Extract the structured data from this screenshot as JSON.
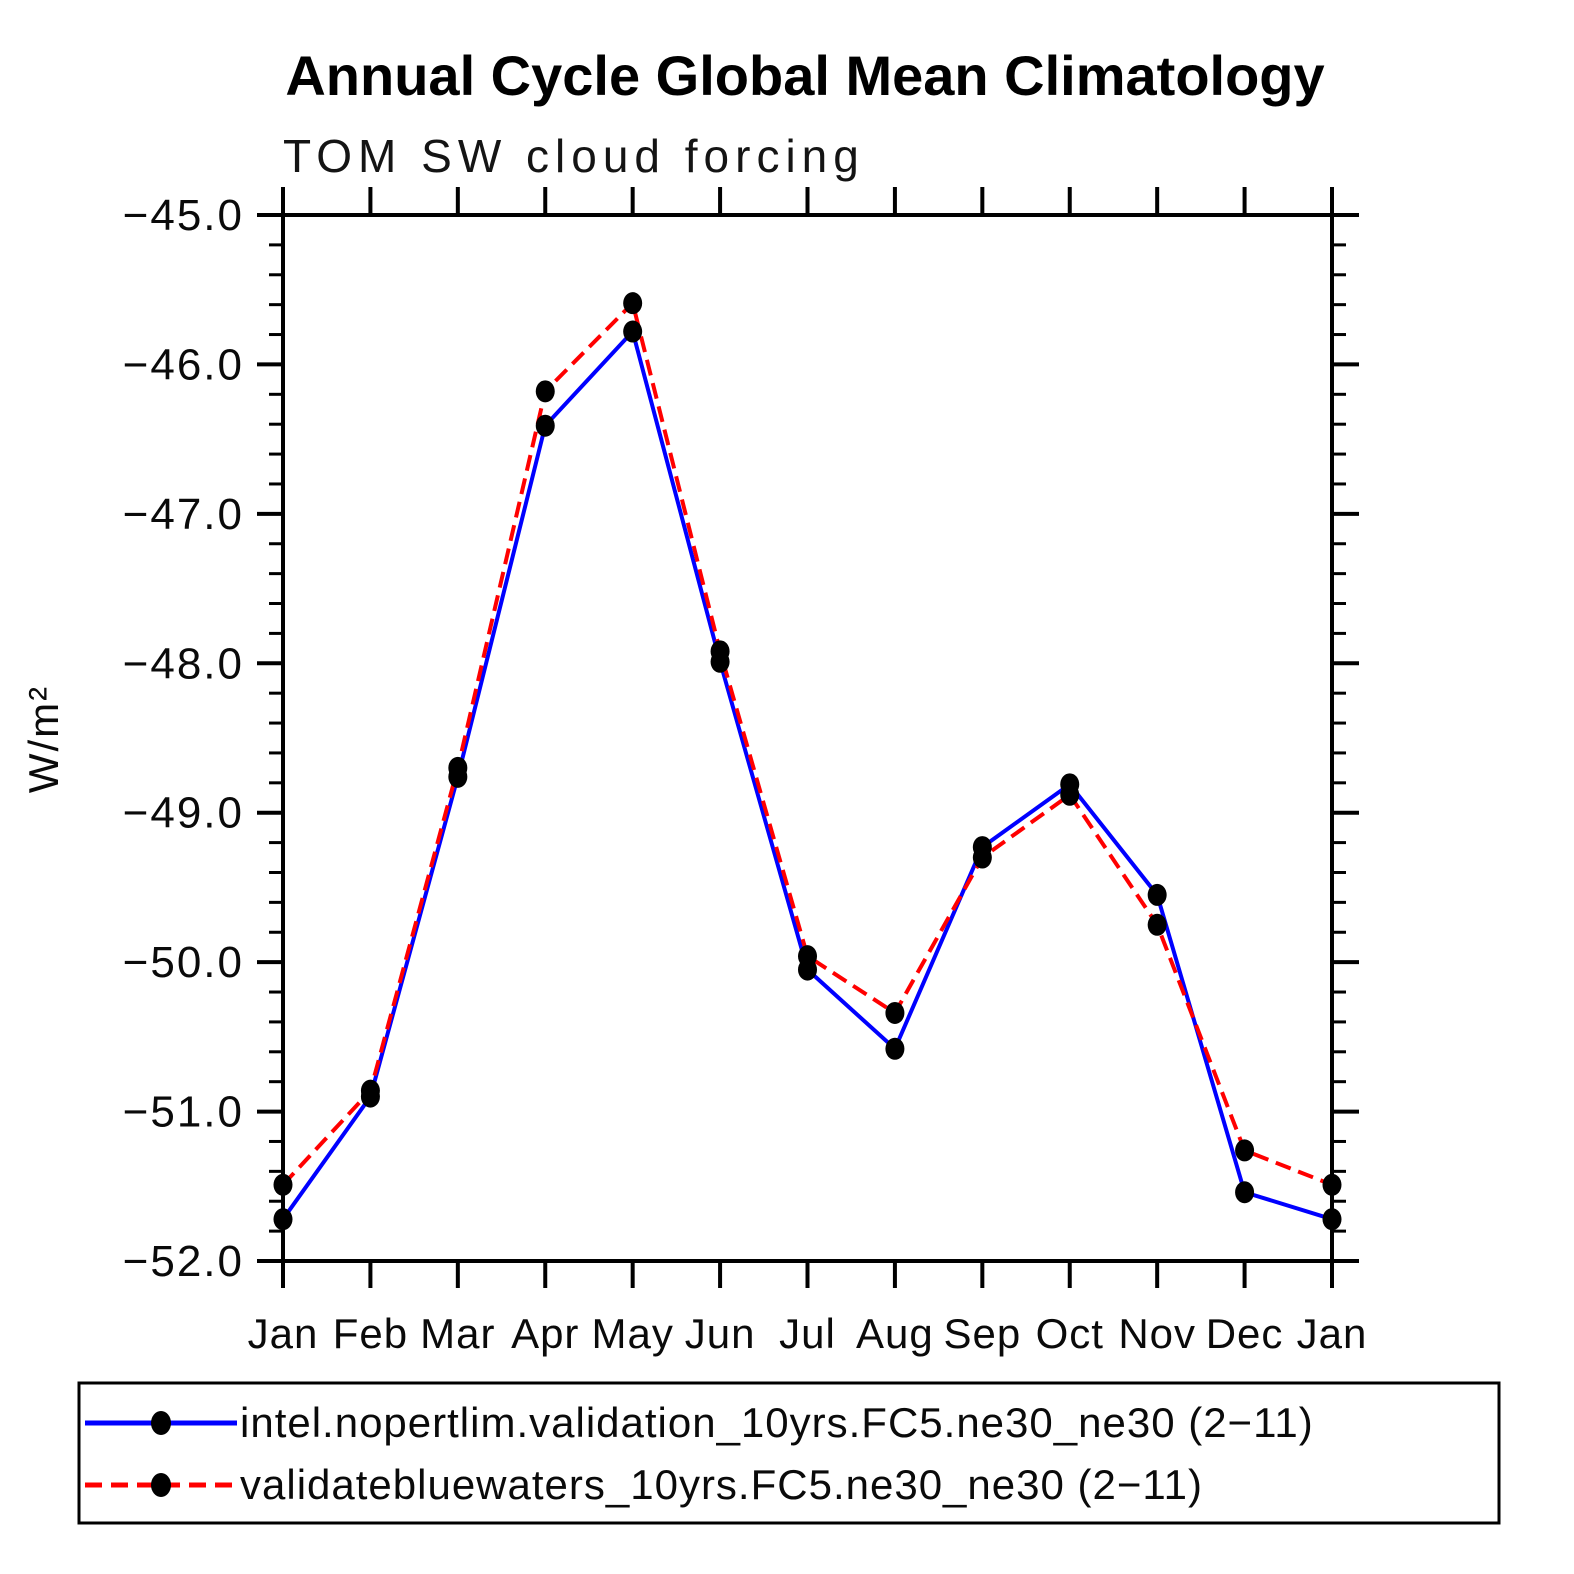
{
  "chart_data": {
    "type": "line",
    "title": "Annual Cycle Global Mean Climatology",
    "subtitle": "TOM SW cloud forcing",
    "ylabel": "W/m²",
    "xlabel": "",
    "categories": [
      "Jan",
      "Feb",
      "Mar",
      "Apr",
      "May",
      "Jun",
      "Jul",
      "Aug",
      "Sep",
      "Oct",
      "Nov",
      "Dec",
      "Jan"
    ],
    "ylim": [
      -52.0,
      -45.0
    ],
    "ytick_labels": [
      "−45.0",
      "−46.0",
      "−47.0",
      "−48.0",
      "−49.0",
      "−50.0",
      "−51.0",
      "−52.0"
    ],
    "ytick_values": [
      -45.0,
      -46.0,
      -47.0,
      -48.0,
      -49.0,
      -50.0,
      -51.0,
      -52.0
    ],
    "yminor_step": 0.2,
    "grid": false,
    "legend_position": "bottom",
    "marker": "filled-circle",
    "marker_color": "#000000",
    "series": [
      {
        "name": "intel.nopertlim.validation_10yrs.FC5.ne30_ne30 (2−11)",
        "color": "#0000ff",
        "line_style": "solid",
        "values": [
          -51.72,
          -50.9,
          -48.76,
          -46.41,
          -45.78,
          -47.99,
          -50.05,
          -50.58,
          -49.23,
          -48.81,
          -49.55,
          -51.54,
          -51.72
        ]
      },
      {
        "name": "validatebluewaters_10yrs.FC5.ne30_ne30 (2−11)",
        "color": "#ff0000",
        "line_style": "dashed",
        "values": [
          -51.49,
          -50.86,
          -48.7,
          -46.18,
          -45.59,
          -47.92,
          -49.96,
          -50.34,
          -49.3,
          -48.88,
          -49.75,
          -51.26,
          -51.49
        ]
      }
    ]
  }
}
